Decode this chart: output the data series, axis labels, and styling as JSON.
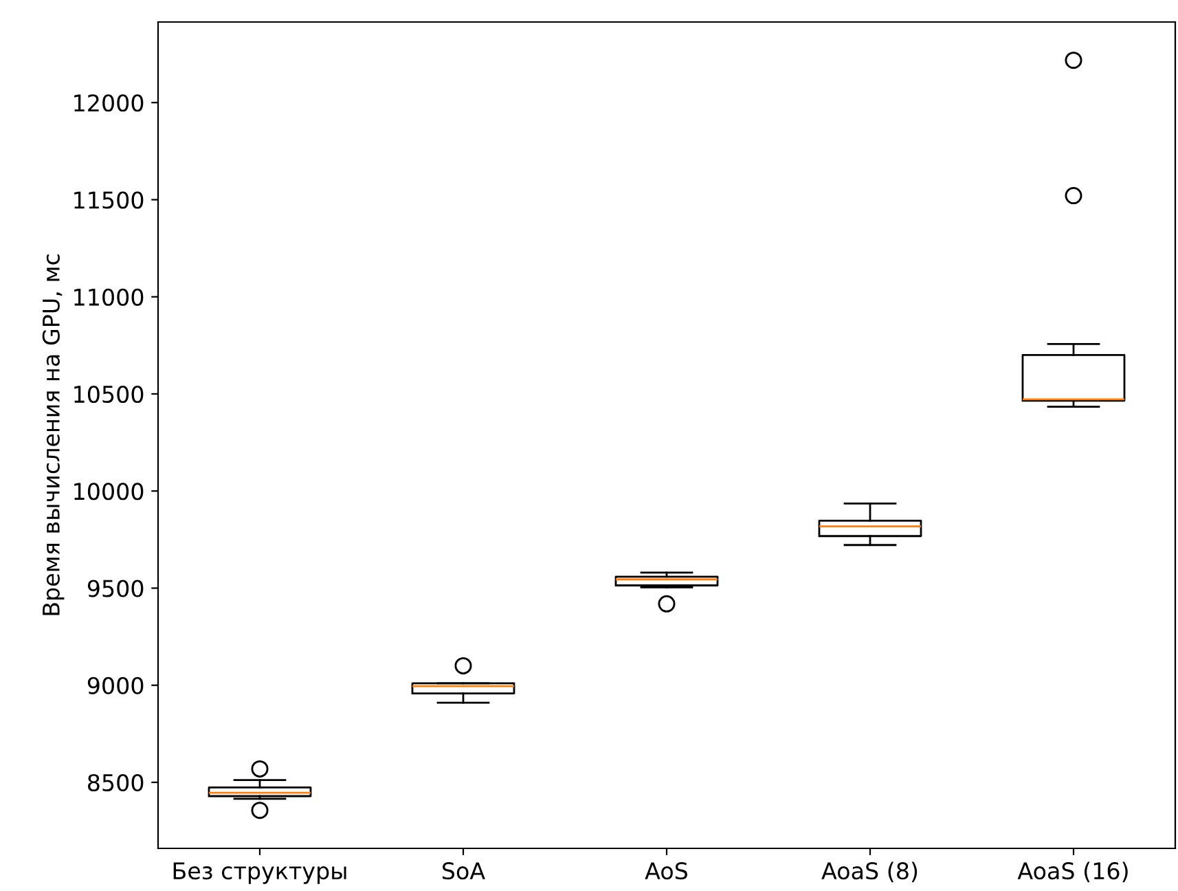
{
  "chart_data": {
    "type": "box",
    "ylabel": "Время вычисления на GPU, мс",
    "categories": [
      "Без структуры",
      "SoA",
      "AoS",
      "AoaS (8)",
      "AoaS (16)"
    ],
    "boxes": [
      {
        "low": 8415,
        "q1": 8429,
        "median": 8446,
        "q3": 8474,
        "high": 8512,
        "outliers": [
          8569,
          8356
        ]
      },
      {
        "low": 8910,
        "q1": 8958,
        "median": 8995,
        "q3": 9010,
        "high": 9010,
        "outliers": [
          9100
        ]
      },
      {
        "low": 9504,
        "q1": 9514,
        "median": 9545,
        "q3": 9559,
        "high": 9580,
        "outliers": [
          9419
        ]
      },
      {
        "low": 9722,
        "q1": 9768,
        "median": 9818,
        "q3": 9847,
        "high": 9936
      },
      {
        "low": 10434,
        "q1": 10465,
        "median": 10472,
        "q3": 10700,
        "high": 10757,
        "outliers": [
          12218,
          11521
        ]
      }
    ],
    "color": "#000000",
    "ylim": [
      8160,
      12415
    ],
    "yticks": [
      8500,
      9000,
      9500,
      10000,
      10500,
      11000,
      11500,
      12000
    ],
    "grid": false
  }
}
